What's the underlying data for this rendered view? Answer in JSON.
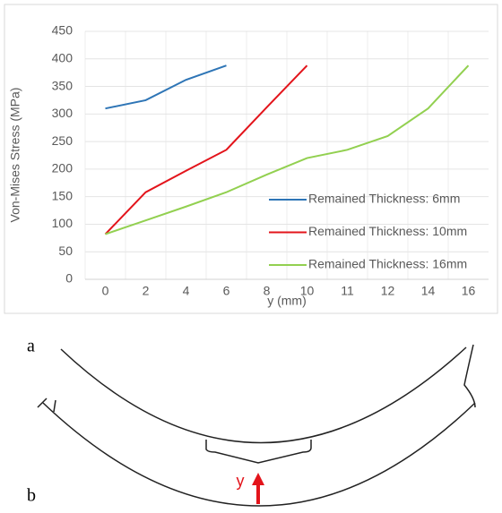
{
  "chart_data": {
    "type": "line",
    "y_label": "Von-Mises Stress (MPa)",
    "x_label": "y (mm)",
    "categories": [
      "0",
      "2",
      "4",
      "6",
      "8",
      "10",
      "11",
      "12",
      "14",
      "16"
    ],
    "series": [
      {
        "name": "Remained Thickness: 6mm",
        "color": "#2e75b6",
        "values": [
          310,
          325,
          362,
          388,
          null,
          null,
          null,
          null,
          null,
          null
        ]
      },
      {
        "name": "Remained Thickness: 10mm",
        "color": "#e3141b",
        "values": [
          82,
          158,
          197,
          235,
          312,
          388,
          null,
          null,
          null,
          null
        ]
      },
      {
        "name": "Remained Thickness: 16mm",
        "color": "#92d050",
        "values": [
          82,
          107,
          132,
          158,
          190,
          220,
          235,
          260,
          310,
          388
        ]
      }
    ],
    "ylim": [
      0,
      450
    ],
    "yticks": [
      0,
      50,
      100,
      150,
      200,
      250,
      300,
      350,
      400,
      450
    ],
    "grid": true
  },
  "labels": {
    "a": "a",
    "b": "b"
  },
  "diagram": {
    "arrow_label": "y"
  }
}
